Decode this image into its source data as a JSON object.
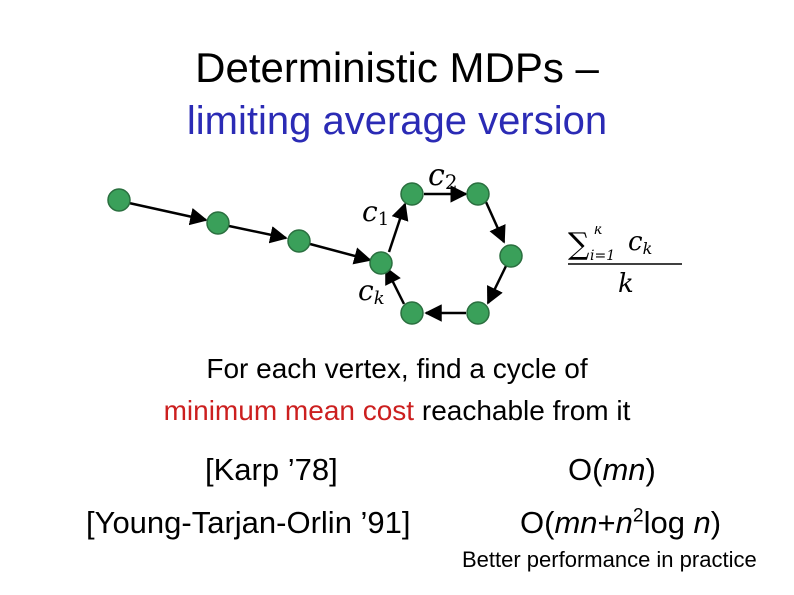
{
  "slide": {
    "title_line1": "Deterministic MDPs –",
    "title_line2": "limiting average version",
    "description_line1": "For each vertex, find a cycle of",
    "description_line2_highlight": "minimum mean cost",
    "description_line2_rest": " reachable from it",
    "citation_karp": "[Karp ’78]",
    "complexity_karp": "O(mn)",
    "citation_yto": "[Young-Tarjan-Orlin ’91]",
    "complexity_yto_prefix": "O(mn+n",
    "complexity_yto_exp": "2",
    "complexity_yto_suffix": "log n)",
    "footnote": "Better performance in practice"
  },
  "diagram": {
    "labels": {
      "c2": "c2",
      "c1": "c1",
      "ck": "ck"
    },
    "formula": {
      "sum_upper": "k",
      "sum_lower": "i=1",
      "term": "ck",
      "denominator": "k"
    }
  },
  "colors": {
    "title_accent": "#2b2bb5",
    "highlight": "#cc1f1f",
    "node_fill": "#3aa05a",
    "node_stroke": "#2a6f3f"
  }
}
